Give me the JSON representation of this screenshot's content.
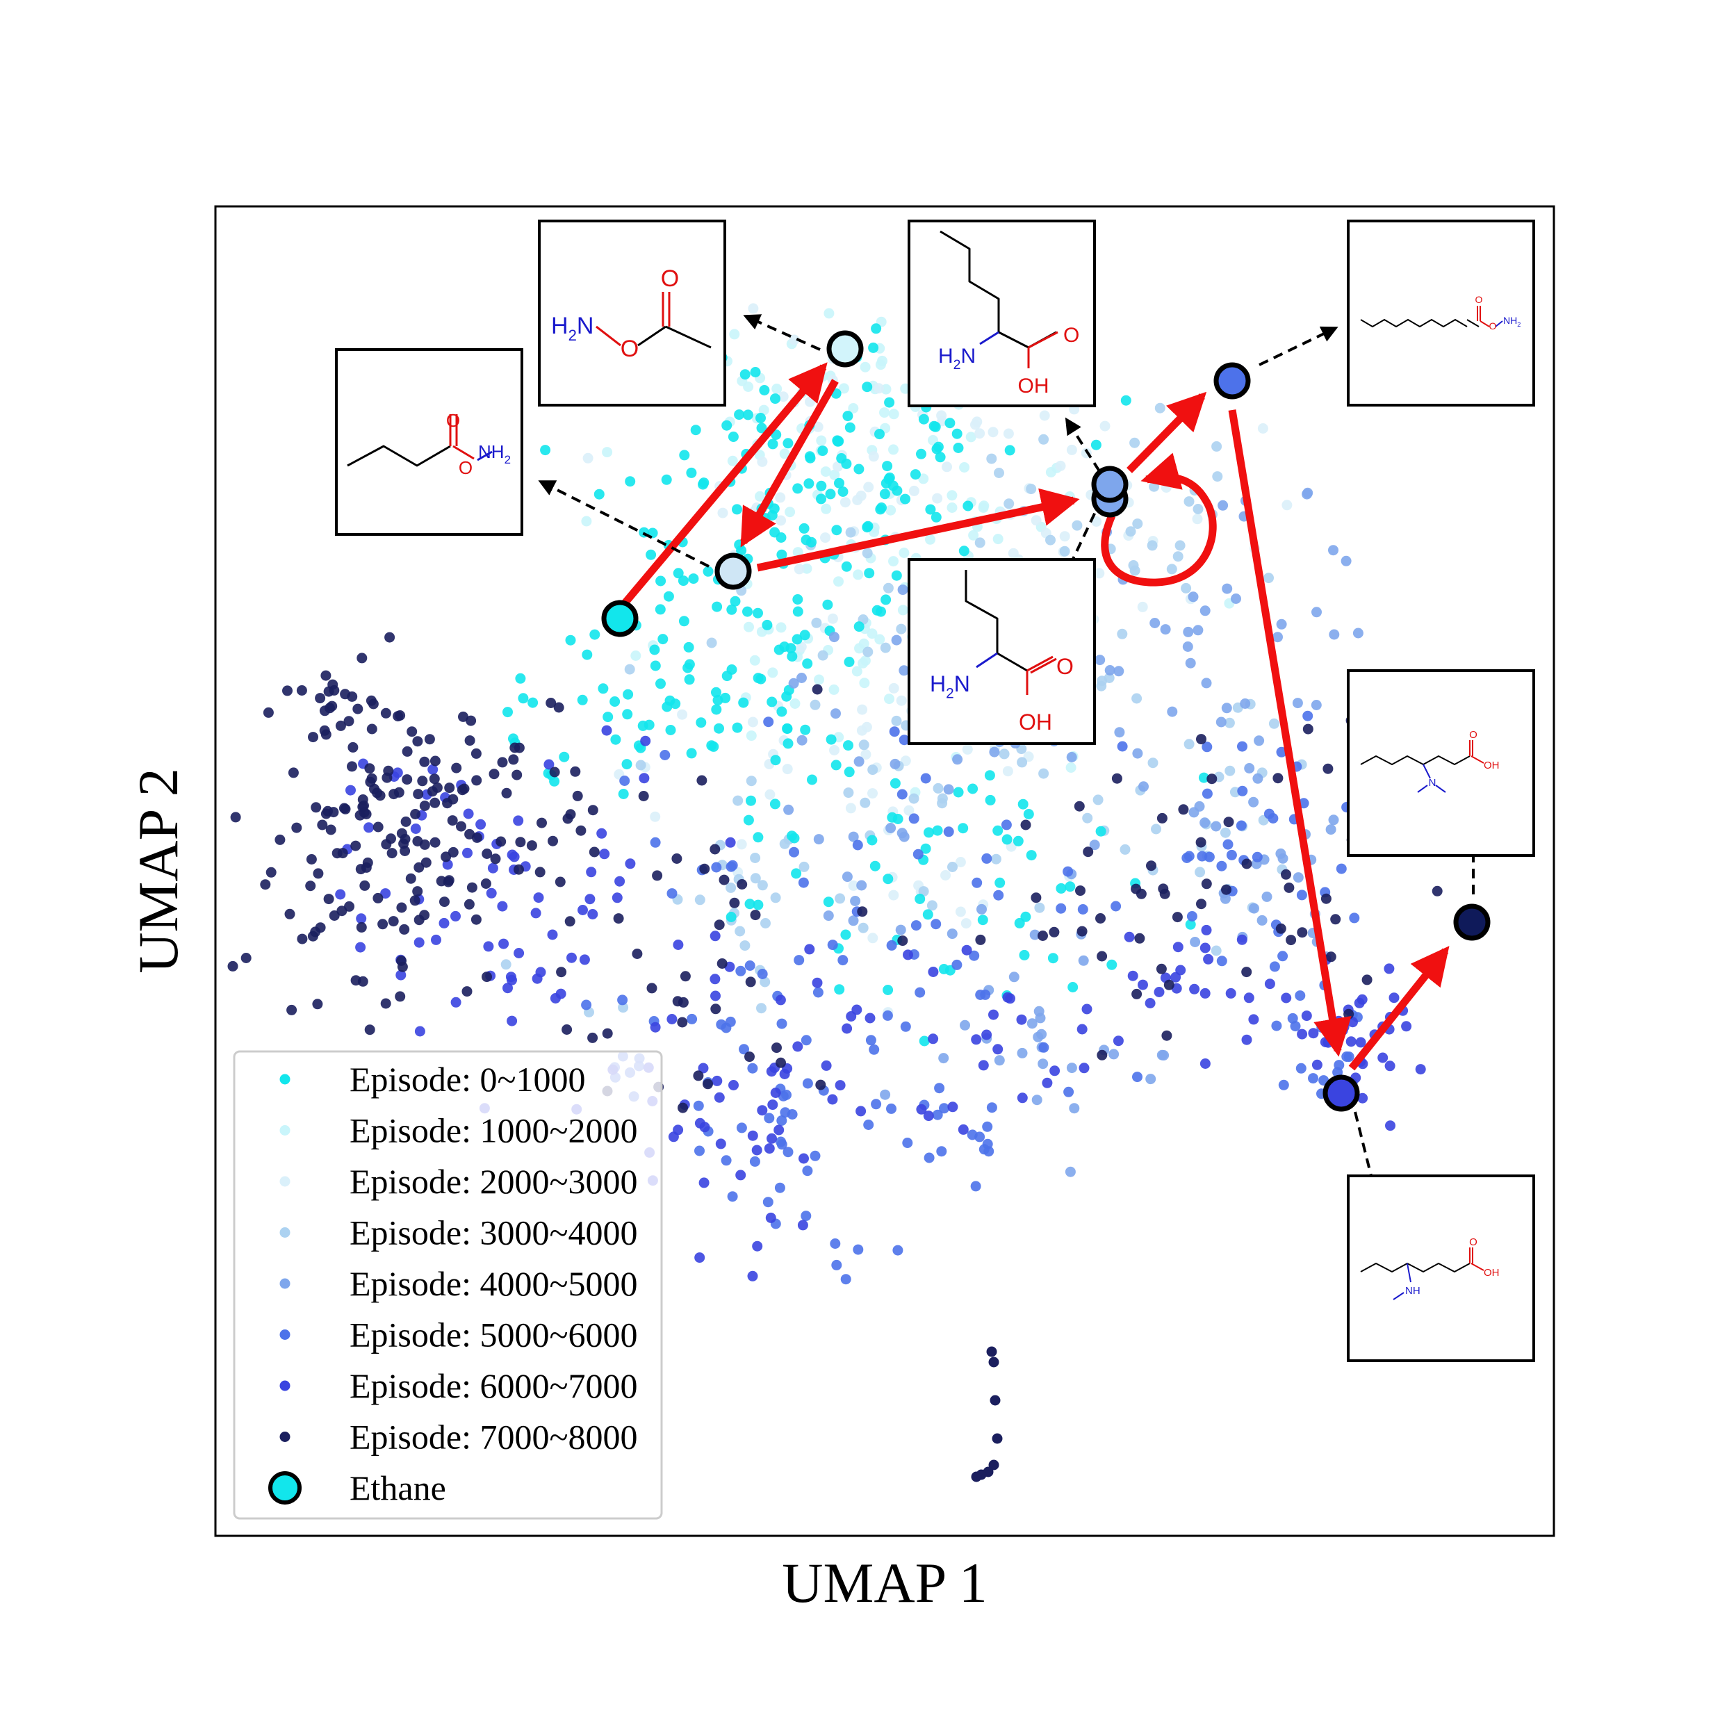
{
  "chart_data": {
    "type": "scatter",
    "xlabel": "UMAP 1",
    "ylabel": "UMAP 2",
    "grid": false,
    "legend_position": "lower-left",
    "series": [
      {
        "name": "Episode: 0~1000",
        "color": "#12e6ec"
      },
      {
        "name": "Episode: 1000~2000",
        "color": "#c9f5fb"
      },
      {
        "name": "Episode: 2000~3000",
        "color": "#daf0fa"
      },
      {
        "name": "Episode: 3000~4000",
        "color": "#acd2f1"
      },
      {
        "name": "Episode: 4000~5000",
        "color": "#7ea6ec"
      },
      {
        "name": "Episode: 5000~6000",
        "color": "#4d72ea"
      },
      {
        "name": "Episode: 6000~7000",
        "color": "#3a44e0"
      },
      {
        "name": "Episode: 7000~8000",
        "color": "#1b1f5e"
      }
    ],
    "highlight": {
      "name": "Ethane",
      "color": "#12e6ec"
    },
    "trajectory_color": "#f01010"
  },
  "molecule_labels": {
    "nh2": "NH",
    "h2n": "H",
    "n": "N",
    "o": "O",
    "oh": "OH",
    "nh": "NH",
    "sub2": "2"
  }
}
